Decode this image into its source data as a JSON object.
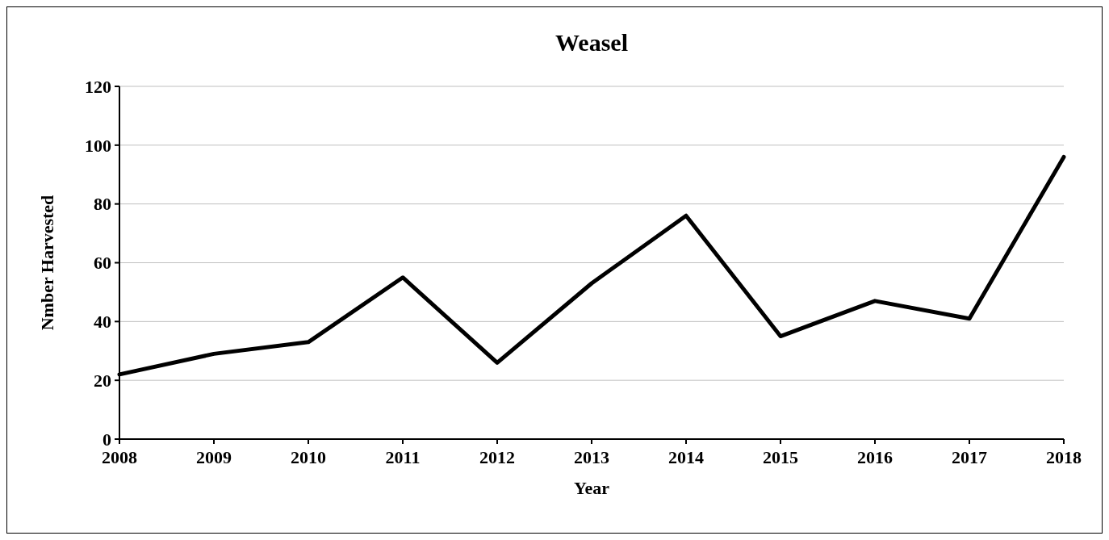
{
  "chart_data": {
    "type": "line",
    "title": "Weasel",
    "xlabel": "Year",
    "ylabel": "Nmber Harvested",
    "x": [
      2008,
      2009,
      2010,
      2011,
      2012,
      2013,
      2014,
      2015,
      2016,
      2017,
      2018
    ],
    "series": [
      {
        "color": "#000000",
        "values": [
          22,
          29,
          33,
          55,
          26,
          53,
          76,
          35,
          47,
          41,
          96
        ]
      }
    ],
    "xlim": [
      2008,
      2018
    ],
    "xticks": [
      2008,
      2009,
      2010,
      2011,
      2012,
      2013,
      2014,
      2015,
      2016,
      2017,
      2018
    ],
    "ylim": [
      0,
      120
    ],
    "yticks": [
      0,
      20,
      40,
      60,
      80,
      100,
      120
    ],
    "grid": "y",
    "marker": "none",
    "line_style": "solid"
  }
}
